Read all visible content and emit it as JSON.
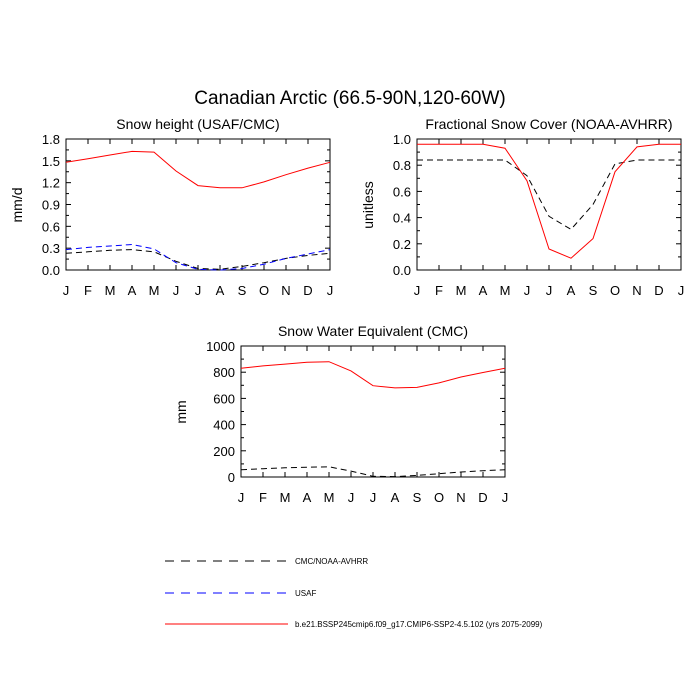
{
  "figure": {
    "title": "Canadian Arctic (66.5-90N,120-60W)"
  },
  "chart_data": [
    {
      "type": "line",
      "title": "Snow height (USAF/CMC)",
      "xlabel": "",
      "ylabel": "mm/d",
      "categories": [
        "J",
        "F",
        "M",
        "A",
        "M",
        "J",
        "J",
        "A",
        "S",
        "O",
        "N",
        "D",
        "J"
      ],
      "ylim": [
        0,
        1.8
      ],
      "yticks": [
        0.0,
        0.3,
        0.6,
        0.9,
        1.2,
        1.5,
        1.8
      ],
      "ytick_labels": [
        "0.0",
        "0.3",
        "0.6",
        "0.9",
        "1.2",
        "1.5",
        "1.8"
      ],
      "series": [
        {
          "name": "CMC/NOAA-AVHRR",
          "color": "#000000",
          "dash": "dashed",
          "values": [
            0.23,
            0.25,
            0.27,
            0.28,
            0.25,
            0.12,
            0.02,
            0.01,
            0.05,
            0.1,
            0.16,
            0.2,
            0.23
          ]
        },
        {
          "name": "USAF",
          "color": "#0000ff",
          "dash": "dashed",
          "values": [
            0.28,
            0.31,
            0.33,
            0.35,
            0.29,
            0.1,
            0.01,
            0.0,
            0.02,
            0.08,
            0.16,
            0.22,
            0.28
          ]
        },
        {
          "name": "b.e21.BSSP245cmip6.f09_g17.CMIP6-SSP2-4.5.102 (yrs 2075-2099)",
          "color": "#ff0000",
          "dash": "solid",
          "values": [
            1.48,
            1.53,
            1.58,
            1.63,
            1.62,
            1.36,
            1.16,
            1.13,
            1.13,
            1.21,
            1.31,
            1.4,
            1.48
          ]
        }
      ]
    },
    {
      "type": "line",
      "title": "Fractional Snow Cover (NOAA-AVHRR)",
      "xlabel": "",
      "ylabel": "unitless",
      "categories": [
        "J",
        "F",
        "M",
        "A",
        "M",
        "J",
        "J",
        "A",
        "S",
        "O",
        "N",
        "D",
        "J"
      ],
      "ylim": [
        0,
        1.0
      ],
      "yticks": [
        0.0,
        0.2,
        0.4,
        0.6,
        0.8,
        1.0
      ],
      "ytick_labels": [
        "0.0",
        "0.2",
        "0.4",
        "0.6",
        "0.8",
        "1.0"
      ],
      "series": [
        {
          "name": "CMC/NOAA-AVHRR",
          "color": "#000000",
          "dash": "dashed",
          "values": [
            0.84,
            0.84,
            0.84,
            0.84,
            0.84,
            0.72,
            0.41,
            0.31,
            0.5,
            0.81,
            0.84,
            0.84,
            0.84
          ]
        },
        {
          "name": "b.e21.BSSP245cmip6.f09_g17.CMIP6-SSP2-4.5.102 (yrs 2075-2099)",
          "color": "#ff0000",
          "dash": "solid",
          "values": [
            0.96,
            0.96,
            0.96,
            0.96,
            0.93,
            0.68,
            0.16,
            0.09,
            0.24,
            0.75,
            0.94,
            0.96,
            0.96
          ]
        }
      ]
    },
    {
      "type": "line",
      "title": "Snow Water Equivalent (CMC)",
      "xlabel": "",
      "ylabel": "mm",
      "categories": [
        "J",
        "F",
        "M",
        "A",
        "M",
        "J",
        "J",
        "A",
        "S",
        "O",
        "N",
        "D",
        "J"
      ],
      "ylim": [
        0,
        1000
      ],
      "yticks": [
        0,
        200,
        400,
        600,
        800,
        1000
      ],
      "ytick_labels": [
        "0",
        "200",
        "400",
        "600",
        "800",
        "1000"
      ],
      "series": [
        {
          "name": "CMC/NOAA-AVHRR",
          "color": "#000000",
          "dash": "dashed",
          "values": [
            55,
            63,
            70,
            75,
            78,
            45,
            5,
            3,
            12,
            25,
            38,
            48,
            55
          ]
        },
        {
          "name": "b.e21.BSSP245cmip6.f09_g17.CMIP6-SSP2-4.5.102 (yrs 2075-2099)",
          "color": "#ff0000",
          "dash": "solid",
          "values": [
            830,
            848,
            862,
            876,
            880,
            810,
            697,
            680,
            684,
            718,
            763,
            798,
            830
          ]
        }
      ]
    }
  ],
  "legend": [
    {
      "label": "CMC/NOAA-AVHRR",
      "color": "#000000",
      "dash": "dashed"
    },
    {
      "label": "USAF",
      "color": "#0000ff",
      "dash": "dashed"
    },
    {
      "label": "b.e21.BSSP245cmip6.f09_g17.CMIP6-SSP2-4.5.102 (yrs 2075-2099)",
      "color": "#ff0000",
      "dash": "solid"
    }
  ]
}
